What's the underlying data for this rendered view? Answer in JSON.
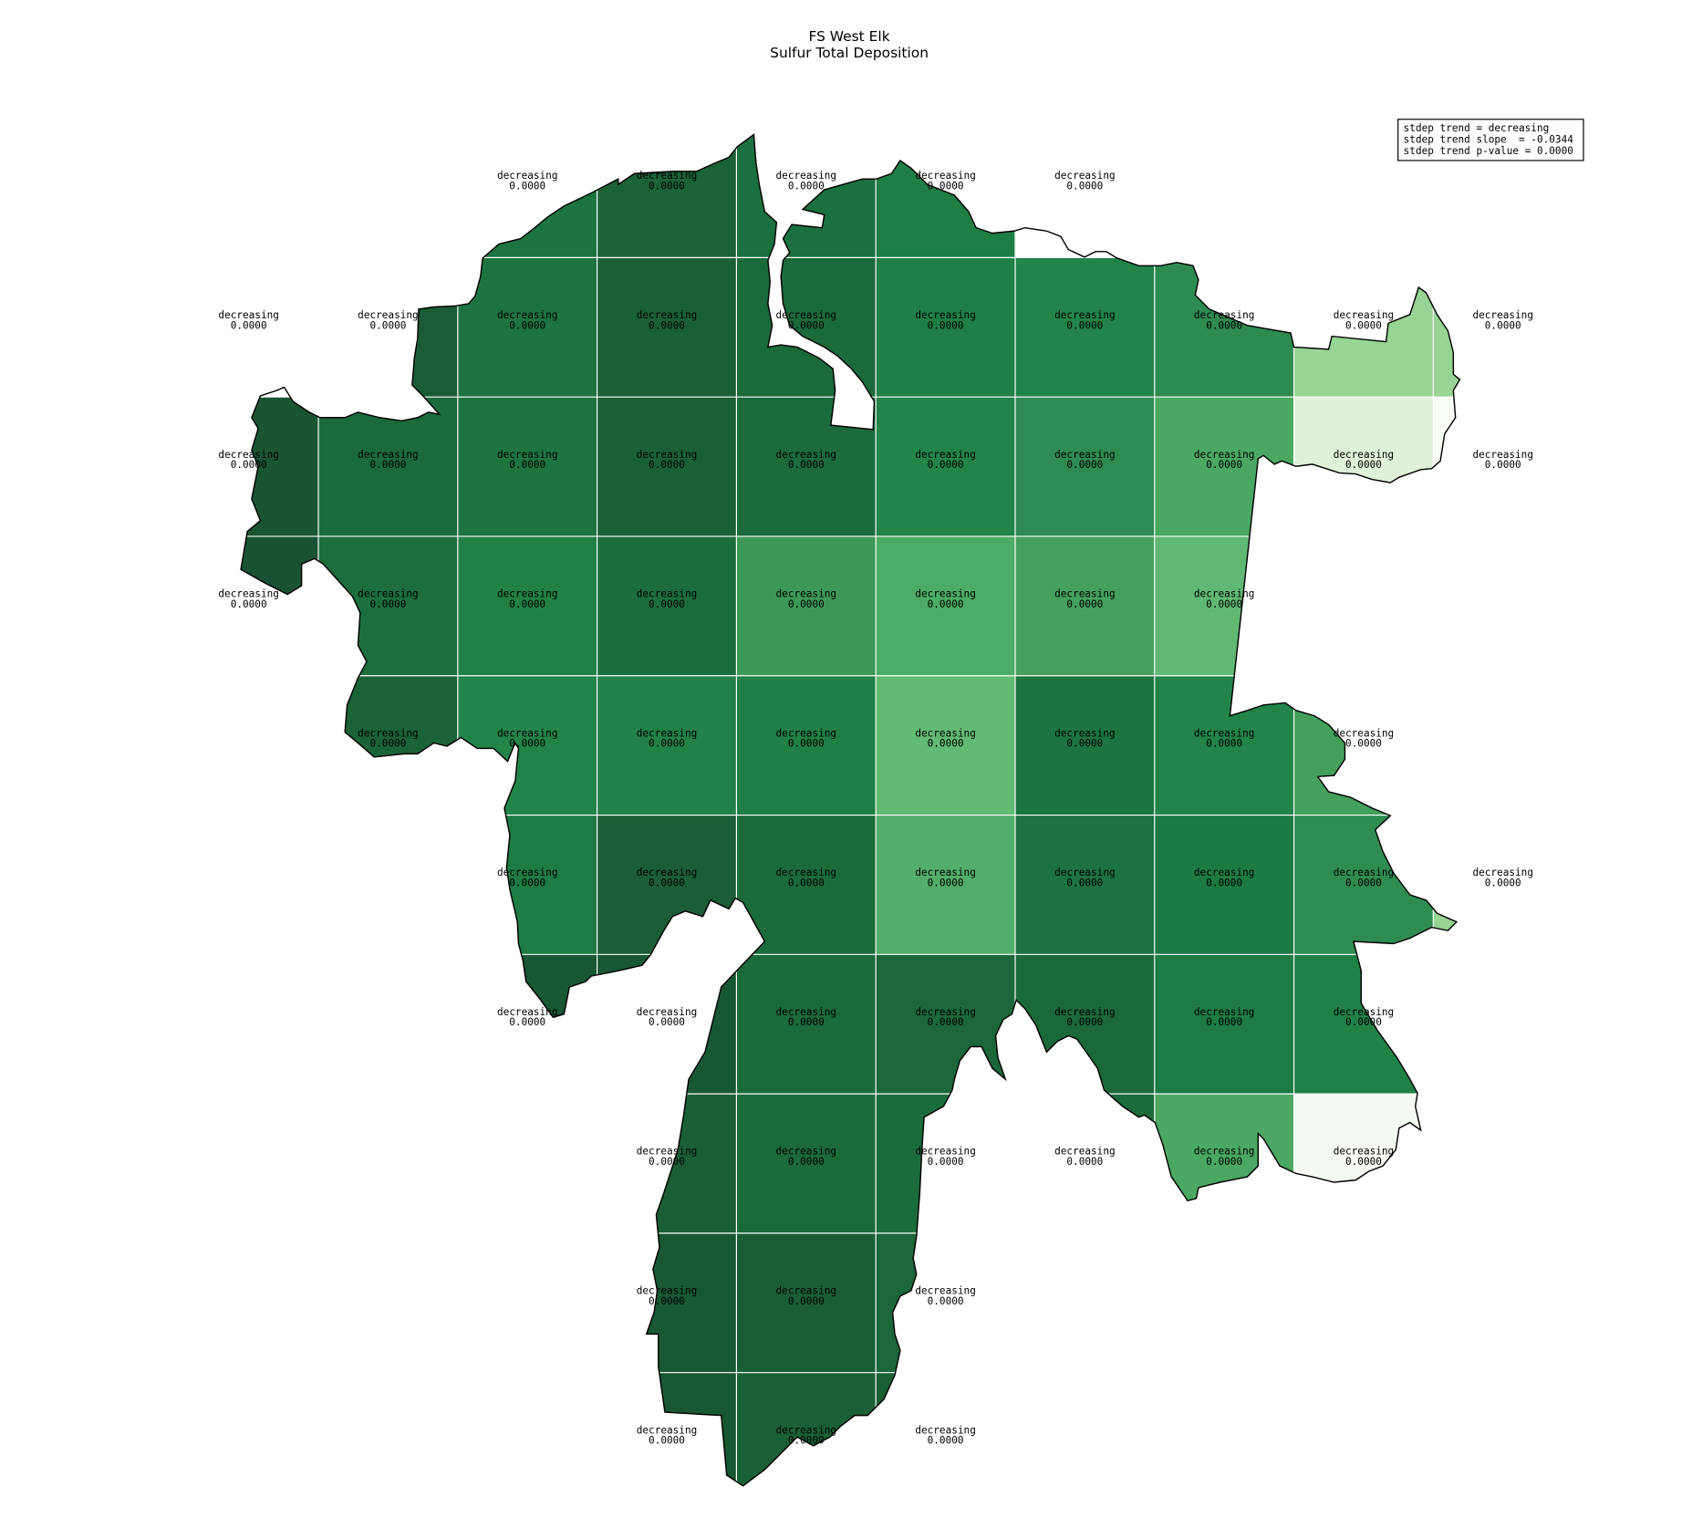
{
  "title": {
    "line1": "FS West Elk",
    "line2": "Sulfur Total Deposition"
  },
  "legend": {
    "line1": "stdep trend = decreasing",
    "line2": "stdep trend slope  = -0.0344",
    "line3": "stdep trend p-value = 0.0000"
  },
  "outline_color": "#000000",
  "grid_line_color": "#ffffff",
  "cell_colors": [
    [
      null,
      null,
      "#1d7440",
      "#1a6336",
      "#1b7040",
      "#1e7e44",
      null,
      null,
      null,
      null
    ],
    [
      null,
      "#1a5c35",
      "#1d7440",
      "#1a6035",
      "#1b6a3a",
      "#1f7f45",
      "#228449",
      "#2e8b50",
      "#98d494",
      "#98d494"
    ],
    [
      "#1a5533",
      "#1b6a3b",
      "#1d743f",
      "#1a6035",
      "#1b6b3b",
      "#228449",
      "#2e8b51",
      "#4aa862",
      "#dff1d8",
      "#f7fcf5"
    ],
    [
      "#185232",
      "#1c6e3d",
      "#218144",
      "#1b6e3c",
      "#3d9857",
      "#4cab64",
      "#45a05e",
      "#60b872",
      null,
      null
    ],
    [
      null,
      "#1a6336",
      "#238449",
      "#228147",
      "#207f44",
      "#62ba73",
      "#1c7540",
      "#228449",
      "#43a05c",
      null
    ],
    [
      null,
      null,
      "#1e7b43",
      "#1b5d36",
      "#1b6b3a",
      "#52ae6a",
      "#1c7240",
      "#1c7a42",
      "#2f8c51",
      "#98d494"
    ],
    [
      null,
      null,
      "#185734",
      "#185734",
      "#1b6a3a",
      "#1b6739",
      "#1b6939",
      "#1d7b43",
      "#208147",
      null
    ],
    [
      null,
      null,
      null,
      "#1a5e35",
      "#1b6a3a",
      "#1b6c3b",
      "#1b6a3a",
      "#4aa862",
      "#f4faf1",
      null
    ],
    [
      null,
      null,
      null,
      "#185833",
      "#1a5e35",
      "#1b663a",
      null,
      null,
      null,
      null
    ],
    [
      null,
      null,
      null,
      "#185833",
      "#1a6035",
      "#1a6035",
      null,
      null,
      null,
      null
    ]
  ],
  "cell_labels": {
    "trend": "decreasing",
    "p_value": "0.0000",
    "rows": [
      [
        2,
        3,
        4,
        5,
        6
      ],
      [
        0,
        1,
        2,
        3,
        4,
        5,
        6,
        7,
        8,
        9
      ],
      [
        0,
        1,
        2,
        3,
        4,
        5,
        6,
        7,
        8,
        9
      ],
      [
        0,
        1,
        2,
        3,
        4,
        5,
        6,
        7
      ],
      [
        1,
        2,
        3,
        4,
        5,
        6,
        7,
        8
      ],
      [
        2,
        3,
        4,
        5,
        6,
        7,
        8,
        9
      ],
      [
        2,
        3,
        4,
        5,
        6,
        7,
        8
      ],
      [
        3,
        4,
        5,
        6,
        7,
        8
      ],
      [
        3,
        4,
        5
      ],
      [
        3,
        4,
        5
      ]
    ]
  }
}
